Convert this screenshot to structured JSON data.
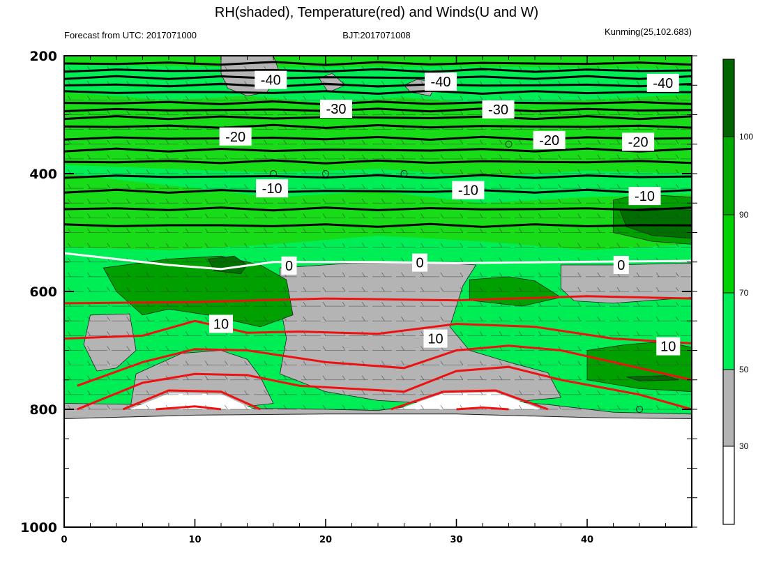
{
  "chart_data": {
    "type": "contour",
    "title": "RH(shaded), Temperature(red) and Winds(U and W)",
    "subtitle_left": "Forecast from UTC: 2017071000",
    "subtitle_center": "BJT:2017071008",
    "subtitle_right": "Kunming(25,102.683)",
    "x_ticks": [
      "0",
      "10",
      "20",
      "30",
      "40"
    ],
    "x_tick_values": [
      0,
      10,
      20,
      30,
      40
    ],
    "xlim": [
      0,
      48
    ],
    "y_ticks": [
      "200",
      "400",
      "600",
      "800",
      "1000"
    ],
    "y_tick_values": [
      200,
      400,
      600,
      800,
      1000
    ],
    "ylim": [
      200,
      1000
    ],
    "colorbar": {
      "labels": [
        "30",
        "50",
        "70",
        "90",
        "100"
      ],
      "colors": [
        "#ffffff",
        "#b3b3b3",
        "#00ee55",
        "#00d200",
        "#00aa00",
        "#006400"
      ]
    },
    "rh_colors": {
      "dry": "#b4b4b4",
      "moist": "#00ee55",
      "humid": "#17dc17",
      "wet": "#00a000",
      "saturated": "#006e00"
    },
    "temperature_contours_black": [
      {
        "label": "-40",
        "levels": [
          213,
          225,
          237,
          250,
          262
        ]
      },
      {
        "label": "-30",
        "levels": [
          280,
          292,
          305
        ]
      },
      {
        "label": "-20",
        "levels": [
          320,
          340,
          360
        ]
      },
      {
        "label": "-10",
        "levels": [
          380,
          405,
          430,
          460,
          488
        ]
      }
    ],
    "freezing_level_label": "0",
    "freezing_level": [
      [
        0,
        535
      ],
      [
        4,
        545
      ],
      [
        8,
        555
      ],
      [
        12,
        562
      ],
      [
        16,
        550
      ],
      [
        24,
        550
      ],
      [
        30,
        552
      ],
      [
        38,
        550
      ],
      [
        48,
        548
      ]
    ],
    "temperature_contours_red": [
      {
        "label": "10",
        "points": [
          [
            0,
            620
          ],
          [
            10,
            618
          ],
          [
            20,
            612
          ],
          [
            30,
            615
          ],
          [
            40,
            608
          ],
          [
            48,
            612
          ]
        ]
      },
      {
        "points": [
          [
            0,
            680
          ],
          [
            6,
            675
          ],
          [
            10,
            650
          ],
          [
            14,
            670
          ],
          [
            18,
            668
          ],
          [
            24,
            672
          ],
          [
            30,
            655
          ],
          [
            36,
            660
          ],
          [
            42,
            680
          ],
          [
            48,
            688
          ]
        ]
      },
      {
        "points": [
          [
            1,
            760
          ],
          [
            6,
            720
          ],
          [
            10,
            698
          ],
          [
            14,
            700
          ],
          [
            20,
            720
          ],
          [
            26,
            730
          ],
          [
            30,
            700
          ],
          [
            34,
            692
          ],
          [
            38,
            700
          ],
          [
            44,
            730
          ],
          [
            48,
            750
          ]
        ]
      },
      {
        "points": [
          [
            1,
            800
          ],
          [
            6,
            755
          ],
          [
            10,
            740
          ],
          [
            14,
            742
          ],
          [
            18,
            760
          ],
          [
            26,
            770
          ],
          [
            30,
            735
          ],
          [
            34,
            728
          ],
          [
            38,
            750
          ],
          [
            44,
            775
          ],
          [
            48,
            800
          ]
        ]
      },
      {
        "points": [
          [
            4.5,
            800
          ],
          [
            8,
            768
          ],
          [
            12,
            770
          ],
          [
            15,
            800
          ]
        ]
      },
      {
        "points": [
          [
            25,
            800
          ],
          [
            29,
            770
          ],
          [
            33,
            768
          ],
          [
            37,
            800
          ]
        ]
      },
      {
        "points": [
          [
            7,
            800
          ],
          [
            10,
            795
          ],
          [
            12,
            800
          ]
        ]
      },
      {
        "points": [
          [
            30,
            800
          ],
          [
            32,
            797
          ],
          [
            34,
            800
          ]
        ]
      }
    ],
    "contour_labels": [
      {
        "text": "-40",
        "x": 15.8,
        "y": 241
      },
      {
        "text": "-40",
        "x": 28.8,
        "y": 244
      },
      {
        "text": "-40",
        "x": 45.8,
        "y": 246
      },
      {
        "text": "-30",
        "x": 20.8,
        "y": 290
      },
      {
        "text": "-30",
        "x": 33.2,
        "y": 291
      },
      {
        "text": "-20",
        "x": 13.1,
        "y": 337
      },
      {
        "text": "-20",
        "x": 37.1,
        "y": 343
      },
      {
        "text": "-20",
        "x": 43.9,
        "y": 346
      },
      {
        "text": "-10",
        "x": 15.9,
        "y": 425
      },
      {
        "text": "-10",
        "x": 30.9,
        "y": 428
      },
      {
        "text": "-10",
        "x": 44.4,
        "y": 438
      },
      {
        "text": "0",
        "x": 17.2,
        "y": 556
      },
      {
        "text": "0",
        "x": 27.2,
        "y": 551
      },
      {
        "text": "0",
        "x": 42.6,
        "y": 555
      },
      {
        "text": "10",
        "x": 12,
        "y": 655
      },
      {
        "text": "10",
        "x": 28.4,
        "y": 680
      },
      {
        "text": "10",
        "x": 46.2,
        "y": 693
      }
    ],
    "wind_levels": [
      200,
      225,
      250,
      275,
      300,
      325,
      350,
      375,
      400,
      425,
      450,
      475,
      500,
      525,
      550,
      575,
      600,
      625,
      650,
      675,
      700,
      725,
      750,
      775,
      800
    ],
    "surface_pressure": [
      [
        0,
        816
      ],
      [
        10,
        810
      ],
      [
        20,
        808
      ],
      [
        30,
        808
      ],
      [
        40,
        814
      ],
      [
        48,
        816
      ]
    ]
  }
}
